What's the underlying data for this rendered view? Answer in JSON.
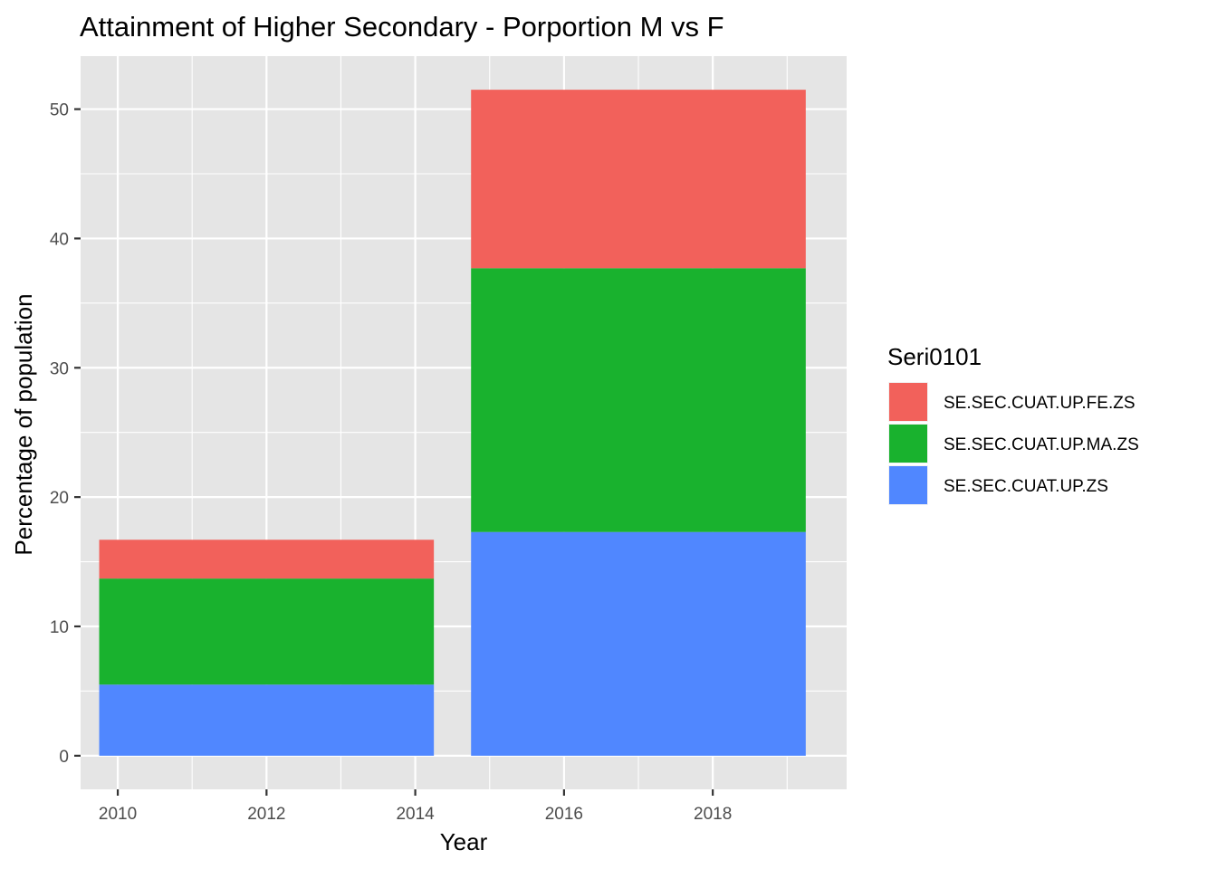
{
  "chart_data": {
    "type": "bar",
    "stacked": true,
    "title": "Attainment of Higher Secondary - Porportion M vs F",
    "xlabel": "Year",
    "ylabel": "Percentage of population",
    "xlim": [
      2009.5,
      2019.8
    ],
    "ylim": [
      -2.6,
      54.1
    ],
    "xticks": [
      2010,
      2012,
      2014,
      2016,
      2018
    ],
    "xtick_labels": [
      "2010",
      "2012",
      "2014",
      "2016",
      "2018"
    ],
    "yticks": [
      0,
      10,
      20,
      30,
      40,
      50
    ],
    "ytick_labels": [
      "0",
      "10",
      "20",
      "30",
      "40",
      "50"
    ],
    "grid": true,
    "legend_position": "right",
    "legend_title": "Seri0101",
    "bars": [
      {
        "x": 2012,
        "width": 4.5
      },
      {
        "x": 2017,
        "width": 4.5
      }
    ],
    "series": [
      {
        "name": "SE.SEC.CUAT.UP.ZS",
        "color": "#5087FF",
        "values": [
          5.5,
          17.3
        ]
      },
      {
        "name": "SE.SEC.CUAT.UP.MA.ZS",
        "color": "#19B22E",
        "values": [
          8.2,
          20.4
        ]
      },
      {
        "name": "SE.SEC.CUAT.UP.FE.ZS",
        "color": "#F2615B",
        "values": [
          3.0,
          13.8
        ]
      }
    ],
    "legend_order": [
      "SE.SEC.CUAT.UP.FE.ZS",
      "SE.SEC.CUAT.UP.MA.ZS",
      "SE.SEC.CUAT.UP.ZS"
    ],
    "panel_background": "#E5E5E5"
  }
}
